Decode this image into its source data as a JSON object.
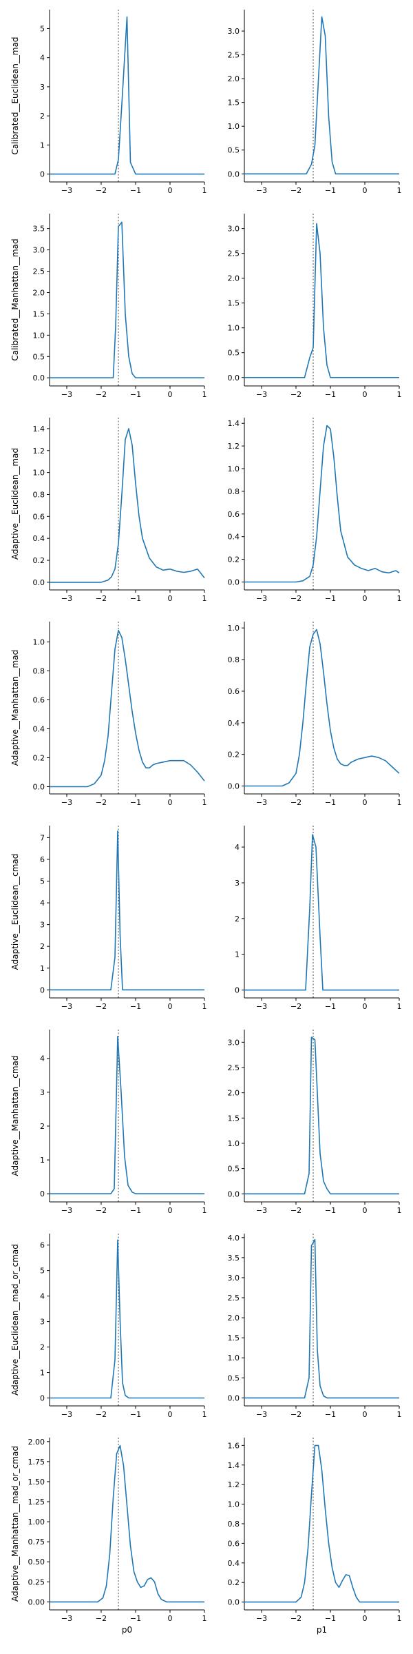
{
  "colors": {
    "series": "#1f77b4",
    "reference": "#444444",
    "axis": "#000000"
  },
  "chart_data": {
    "type": "line",
    "layout": "8 rows x 2 columns grid of density plots",
    "columns": [
      {
        "xlabel": "p0",
        "reference_x": -1.5
      },
      {
        "xlabel": "p1",
        "reference_x": -1.5
      }
    ],
    "xlim": [
      -3.5,
      1.0
    ],
    "x_ticks": [
      -3,
      -2,
      -1,
      0,
      1
    ],
    "grid": false,
    "legend": "none",
    "rows": [
      {
        "ylabel": "Calibrated__Euclidean__mad",
        "panels": [
          {
            "ylim": [
              -0.27,
              5.65
            ],
            "yticks": [
              0,
              1,
              2,
              3,
              4,
              5
            ],
            "ytick_labels": [
              "0",
              "1",
              "2",
              "3",
              "4",
              "5"
            ],
            "x": [
              -3.5,
              -1.6,
              -1.5,
              -1.4,
              -1.25,
              -1.15,
              -1.0,
              1.0
            ],
            "y": [
              0,
              0,
              0.5,
              2.4,
              5.4,
              0.4,
              0,
              0
            ]
          },
          {
            "ylim": [
              -0.17,
              3.45
            ],
            "yticks": [
              0,
              0.5,
              1,
              1.5,
              2,
              2.5,
              3
            ],
            "ytick_labels": [
              "0.0",
              "0.5",
              "1.0",
              "1.5",
              "2.0",
              "2.5",
              "3.0"
            ],
            "x": [
              -3.5,
              -1.7,
              -1.55,
              -1.45,
              -1.25,
              -1.15,
              -1.05,
              -0.95,
              -0.85,
              1.0
            ],
            "y": [
              0,
              0,
              0.2,
              0.6,
              3.3,
              2.9,
              1.2,
              0.25,
              0,
              0
            ]
          }
        ]
      },
      {
        "ylabel": "Calibrated__Manhattan__mad",
        "panels": [
          {
            "ylim": [
              -0.19,
              3.85
            ],
            "yticks": [
              0,
              0.5,
              1,
              1.5,
              2,
              2.5,
              3,
              3.5
            ],
            "ytick_labels": [
              "0.0",
              "0.5",
              "1.0",
              "1.5",
              "2.0",
              "2.5",
              "3.0",
              "3.5"
            ],
            "x": [
              -3.5,
              -1.65,
              -1.58,
              -1.5,
              -1.4,
              -1.3,
              -1.2,
              -1.1,
              -1.0,
              1.0
            ],
            "y": [
              0,
              0,
              1.2,
              3.55,
              3.65,
              1.5,
              0.5,
              0.1,
              0,
              0
            ]
          },
          {
            "ylim": [
              -0.17,
              3.3
            ],
            "yticks": [
              0,
              0.5,
              1,
              1.5,
              2,
              2.5,
              3
            ],
            "ytick_labels": [
              "0.0",
              "0.5",
              "1.0",
              "1.5",
              "2.0",
              "2.5",
              "3.0"
            ],
            "x": [
              -3.5,
              -1.75,
              -1.6,
              -1.5,
              -1.4,
              -1.3,
              -1.2,
              -1.1,
              -1.0,
              1.0
            ],
            "y": [
              0,
              0,
              0.4,
              0.6,
              3.1,
              2.5,
              1.0,
              0.25,
              0,
              0
            ]
          }
        ]
      },
      {
        "ylabel": "Adaptive__Euclidean__mad",
        "panels": [
          {
            "ylim": [
              -0.07,
              1.5
            ],
            "yticks": [
              0,
              0.2,
              0.4,
              0.6,
              0.8,
              1.0,
              1.2,
              1.4
            ],
            "ytick_labels": [
              "0.0",
              "0.2",
              "0.4",
              "0.6",
              "0.8",
              "1.0",
              "1.2",
              "1.4"
            ],
            "x": [
              -3.5,
              -2.0,
              -1.8,
              -1.7,
              -1.6,
              -1.5,
              -1.4,
              -1.3,
              -1.2,
              -1.1,
              -1.0,
              -0.9,
              -0.8,
              -0.6,
              -0.4,
              -0.2,
              0.0,
              0.2,
              0.4,
              0.6,
              0.8,
              1.0
            ],
            "y": [
              0,
              0,
              0.02,
              0.05,
              0.12,
              0.35,
              0.8,
              1.3,
              1.4,
              1.25,
              0.9,
              0.6,
              0.4,
              0.22,
              0.14,
              0.11,
              0.12,
              0.1,
              0.09,
              0.1,
              0.12,
              0.04
            ]
          },
          {
            "ylim": [
              -0.07,
              1.45
            ],
            "yticks": [
              0,
              0.2,
              0.4,
              0.6,
              0.8,
              1.0,
              1.2,
              1.4
            ],
            "ytick_labels": [
              "0.0",
              "0.2",
              "0.4",
              "0.6",
              "0.8",
              "1.0",
              "1.2",
              "1.4"
            ],
            "x": [
              -3.5,
              -2.0,
              -1.8,
              -1.6,
              -1.5,
              -1.4,
              -1.3,
              -1.2,
              -1.1,
              -1.0,
              -0.9,
              -0.8,
              -0.7,
              -0.5,
              -0.3,
              -0.1,
              0.1,
              0.3,
              0.5,
              0.7,
              0.9,
              1.0
            ],
            "y": [
              0,
              0,
              0.01,
              0.05,
              0.15,
              0.4,
              0.8,
              1.2,
              1.38,
              1.35,
              1.1,
              0.75,
              0.45,
              0.22,
              0.15,
              0.12,
              0.1,
              0.12,
              0.09,
              0.08,
              0.1,
              0.08
            ]
          }
        ]
      },
      {
        "ylabel": "Adaptive__Manhattan__mad",
        "panels": [
          {
            "ylim": [
              -0.05,
              1.14
            ],
            "yticks": [
              0,
              0.2,
              0.4,
              0.6,
              0.8,
              1.0
            ],
            "ytick_labels": [
              "0.0",
              "0.2",
              "0.4",
              "0.6",
              "0.8",
              "1.0"
            ],
            "x": [
              -3.5,
              -2.4,
              -2.2,
              -2.0,
              -1.9,
              -1.8,
              -1.7,
              -1.6,
              -1.5,
              -1.4,
              -1.3,
              -1.2,
              -1.1,
              -1.0,
              -0.9,
              -0.8,
              -0.7,
              -0.6,
              -0.5,
              -0.4,
              -0.2,
              0.0,
              0.2,
              0.4,
              0.6,
              0.8,
              1.0
            ],
            "y": [
              0,
              0,
              0.02,
              0.08,
              0.18,
              0.35,
              0.65,
              0.95,
              1.08,
              1.03,
              0.88,
              0.7,
              0.52,
              0.37,
              0.25,
              0.17,
              0.13,
              0.13,
              0.15,
              0.16,
              0.17,
              0.18,
              0.18,
              0.18,
              0.15,
              0.1,
              0.04
            ]
          },
          {
            "ylim": [
              -0.05,
              1.04
            ],
            "yticks": [
              0,
              0.2,
              0.4,
              0.6,
              0.8,
              1.0
            ],
            "ytick_labels": [
              "0.0",
              "0.2",
              "0.4",
              "0.6",
              "0.8",
              "1.0"
            ],
            "x": [
              -3.5,
              -2.4,
              -2.2,
              -2.0,
              -1.9,
              -1.8,
              -1.7,
              -1.6,
              -1.5,
              -1.4,
              -1.3,
              -1.2,
              -1.1,
              -1.0,
              -0.9,
              -0.8,
              -0.7,
              -0.6,
              -0.5,
              -0.4,
              -0.2,
              0.0,
              0.2,
              0.4,
              0.6,
              0.8,
              1.0
            ],
            "y": [
              0,
              0,
              0.02,
              0.08,
              0.2,
              0.4,
              0.65,
              0.88,
              0.96,
              0.99,
              0.9,
              0.72,
              0.52,
              0.35,
              0.24,
              0.17,
              0.14,
              0.13,
              0.13,
              0.15,
              0.17,
              0.18,
              0.19,
              0.18,
              0.16,
              0.12,
              0.08
            ]
          }
        ]
      },
      {
        "ylabel": "Adaptive__Euclidean__cmad",
        "panels": [
          {
            "ylim": [
              -0.37,
              7.55
            ],
            "yticks": [
              0,
              1,
              2,
              3,
              4,
              5,
              6,
              7
            ],
            "ytick_labels": [
              "0",
              "1",
              "2",
              "3",
              "4",
              "5",
              "6",
              "7"
            ],
            "x": [
              -3.5,
              -1.72,
              -1.6,
              -1.52,
              -1.45,
              -1.38,
              -1.3,
              1.0
            ],
            "y": [
              0,
              0,
              1.5,
              7.3,
              2.5,
              0,
              0,
              0
            ]
          },
          {
            "ylim": [
              -0.22,
              4.6
            ],
            "yticks": [
              0,
              1,
              2,
              3,
              4
            ],
            "ytick_labels": [
              "0",
              "1",
              "2",
              "3",
              "4"
            ],
            "x": [
              -3.5,
              -1.72,
              -1.6,
              -1.52,
              -1.42,
              -1.3,
              -1.22,
              1.0
            ],
            "y": [
              0,
              0,
              2.3,
              4.35,
              4.0,
              1.5,
              0,
              0
            ]
          }
        ]
      },
      {
        "ylabel": "Adaptive__Manhattan__cmad",
        "panels": [
          {
            "ylim": [
              -0.24,
              4.85
            ],
            "yticks": [
              0,
              1,
              2,
              3,
              4
            ],
            "ytick_labels": [
              "0",
              "1",
              "2",
              "3",
              "4"
            ],
            "x": [
              -3.5,
              -1.72,
              -1.62,
              -1.52,
              -1.42,
              -1.32,
              -1.22,
              -1.1,
              -1.0,
              1.0
            ],
            "y": [
              0,
              0,
              0.15,
              4.65,
              3.0,
              1.1,
              0.25,
              0.05,
              0,
              0
            ]
          },
          {
            "ylim": [
              -0.16,
              3.25
            ],
            "yticks": [
              0,
              0.5,
              1,
              1.5,
              2,
              2.5,
              3
            ],
            "ytick_labels": [
              "0.0",
              "0.5",
              "1.0",
              "1.5",
              "2.0",
              "2.5",
              "3.0"
            ],
            "x": [
              -3.5,
              -1.75,
              -1.62,
              -1.55,
              -1.45,
              -1.38,
              -1.3,
              -1.2,
              -1.1,
              -1.0,
              1.0
            ],
            "y": [
              0,
              0,
              0.4,
              3.1,
              3.05,
              2.0,
              0.8,
              0.25,
              0.1,
              0,
              0
            ]
          }
        ]
      },
      {
        "ylabel": "Adaptive__Euclidean__mad_or_cmad",
        "panels": [
          {
            "ylim": [
              -0.31,
              6.45
            ],
            "yticks": [
              0,
              1,
              2,
              3,
              4,
              5,
              6
            ],
            "ytick_labels": [
              "0",
              "1",
              "2",
              "3",
              "4",
              "5",
              "6"
            ],
            "x": [
              -3.5,
              -1.72,
              -1.6,
              -1.52,
              -1.45,
              -1.38,
              -1.3,
              -1.2,
              1.0
            ],
            "y": [
              0,
              0,
              1.5,
              6.2,
              3.0,
              0.6,
              0.1,
              0,
              0
            ]
          },
          {
            "ylim": [
              -0.2,
              4.1
            ],
            "yticks": [
              0,
              0.5,
              1,
              1.5,
              2,
              2.5,
              3,
              3.5,
              4
            ],
            "ytick_labels": [
              "0.0",
              "0.5",
              "1.0",
              "1.5",
              "2.0",
              "2.5",
              "3.0",
              "3.5",
              "4.0"
            ],
            "x": [
              -3.5,
              -1.75,
              -1.62,
              -1.55,
              -1.45,
              -1.38,
              -1.3,
              -1.2,
              -1.1,
              1.0
            ],
            "y": [
              0,
              0,
              0.5,
              3.8,
              3.95,
              1.2,
              0.3,
              0.05,
              0,
              0
            ]
          }
        ]
      },
      {
        "ylabel": "Adaptive__Manhattan__mad_or_cmad",
        "panels": [
          {
            "ylim": [
              -0.1,
              2.05
            ],
            "yticks": [
              0,
              0.25,
              0.5,
              0.75,
              1.0,
              1.25,
              1.5,
              1.75,
              2.0
            ],
            "ytick_labels": [
              "0.00",
              "0.25",
              "0.50",
              "0.75",
              "1.00",
              "1.25",
              "1.50",
              "1.75",
              "2.00"
            ],
            "x": [
              -3.5,
              -2.1,
              -1.95,
              -1.85,
              -1.75,
              -1.65,
              -1.55,
              -1.45,
              -1.35,
              -1.25,
              -1.15,
              -1.05,
              -0.95,
              -0.85,
              -0.75,
              -0.65,
              -0.55,
              -0.45,
              -0.35,
              -0.25,
              -0.1,
              0.2,
              1.0
            ],
            "y": [
              0,
              0,
              0.05,
              0.2,
              0.6,
              1.3,
              1.85,
              1.95,
              1.7,
              1.2,
              0.7,
              0.38,
              0.25,
              0.18,
              0.2,
              0.28,
              0.3,
              0.25,
              0.1,
              0.03,
              0,
              0,
              0
            ]
          },
          {
            "ylim": [
              -0.08,
              1.68
            ],
            "yticks": [
              0,
              0.2,
              0.4,
              0.6,
              0.8,
              1.0,
              1.2,
              1.4,
              1.6
            ],
            "ytick_labels": [
              "0.0",
              "0.2",
              "0.4",
              "0.6",
              "0.8",
              "1.0",
              "1.2",
              "1.4",
              "1.6"
            ],
            "x": [
              -3.5,
              -2.0,
              -1.85,
              -1.75,
              -1.65,
              -1.55,
              -1.45,
              -1.35,
              -1.25,
              -1.15,
              -1.05,
              -0.95,
              -0.85,
              -0.75,
              -0.65,
              -0.55,
              -0.45,
              -0.35,
              -0.25,
              -0.15,
              0.0,
              1.0
            ],
            "y": [
              0,
              0,
              0.05,
              0.2,
              0.55,
              1.1,
              1.6,
              1.6,
              1.35,
              0.95,
              0.6,
              0.35,
              0.2,
              0.15,
              0.22,
              0.28,
              0.27,
              0.15,
              0.05,
              0,
              0,
              0
            ]
          }
        ]
      }
    ]
  }
}
